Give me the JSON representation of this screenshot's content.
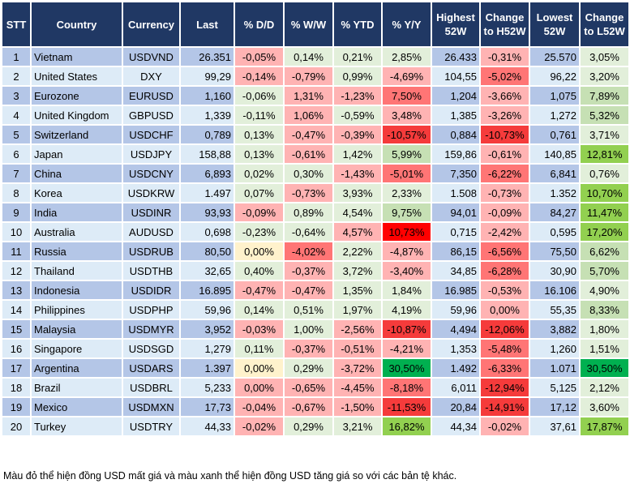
{
  "colors": {
    "g1": "#e2efda",
    "g2": "#c6e0b4",
    "g3": "#92d050",
    "g4": "#00b050",
    "r1": "#ffb3b3",
    "r2": "#ff7575",
    "r3": "#f53b3b",
    "r4": "#ff0000",
    "y": "#fff2cc"
  },
  "headers": [
    "STT",
    "Country",
    "Currency",
    "Last",
    "% D/D",
    "% W/W",
    "% YTD",
    "% Y/Y",
    "Highest 52W",
    "Change to H52W",
    "Lowest 52W",
    "Change to L52W"
  ],
  "rows": [
    {
      "stt": "1",
      "country": "Vietnam",
      "currency": "USDVND",
      "last": "26.351",
      "dd": [
        "-0,05%",
        "r1"
      ],
      "ww": [
        "0,14%",
        "g1"
      ],
      "ytd": [
        "0,21%",
        "g1"
      ],
      "yy": [
        "2,85%",
        "g1"
      ],
      "high": "26.433",
      "chh": [
        "-0,31%",
        "r1"
      ],
      "low": "25.570",
      "chl": [
        "3,05%",
        "g1"
      ]
    },
    {
      "stt": "2",
      "country": "United States",
      "currency": "DXY",
      "last": "99,29",
      "dd": [
        "-0,14%",
        "r1"
      ],
      "ww": [
        "-0,79%",
        "r1"
      ],
      "ytd": [
        "0,99%",
        "g1"
      ],
      "yy": [
        "-4,69%",
        "r1"
      ],
      "high": "104,55",
      "chh": [
        "-5,02%",
        "r2"
      ],
      "low": "96,22",
      "chl": [
        "3,20%",
        "g1"
      ]
    },
    {
      "stt": "3",
      "country": "Eurozone",
      "currency": "EURUSD",
      "last": "1,160",
      "dd": [
        "-0,06%",
        "g1"
      ],
      "ww": [
        "1,31%",
        "r1"
      ],
      "ytd": [
        "-1,23%",
        "r1"
      ],
      "yy": [
        "7,50%",
        "r2"
      ],
      "high": "1,204",
      "chh": [
        "-3,66%",
        "r1"
      ],
      "low": "1,075",
      "chl": [
        "7,89%",
        "g2"
      ]
    },
    {
      "stt": "4",
      "country": "United Kingdom",
      "currency": "GBPUSD",
      "last": "1,339",
      "dd": [
        "-0,11%",
        "g1"
      ],
      "ww": [
        "1,06%",
        "r1"
      ],
      "ytd": [
        "-0,59%",
        "g1"
      ],
      "yy": [
        "3,48%",
        "r1"
      ],
      "high": "1,385",
      "chh": [
        "-3,26%",
        "r1"
      ],
      "low": "1,272",
      "chl": [
        "5,32%",
        "g2"
      ]
    },
    {
      "stt": "5",
      "country": "Switzerland",
      "currency": "USDCHF",
      "last": "0,789",
      "dd": [
        "0,13%",
        "g1"
      ],
      "ww": [
        "-0,47%",
        "r1"
      ],
      "ytd": [
        "-0,39%",
        "r1"
      ],
      "yy": [
        "-10,57%",
        "r3"
      ],
      "high": "0,884",
      "chh": [
        "-10,73%",
        "r3"
      ],
      "low": "0,761",
      "chl": [
        "3,71%",
        "g1"
      ]
    },
    {
      "stt": "6",
      "country": "Japan",
      "currency": "USDJPY",
      "last": "158,88",
      "dd": [
        "0,13%",
        "g1"
      ],
      "ww": [
        "-0,61%",
        "r1"
      ],
      "ytd": [
        "1,42%",
        "g1"
      ],
      "yy": [
        "5,99%",
        "g2"
      ],
      "high": "159,86",
      "chh": [
        "-0,61%",
        "r1"
      ],
      "low": "140,85",
      "chl": [
        "12,81%",
        "g3"
      ]
    },
    {
      "stt": "7",
      "country": "China",
      "currency": "USDCNY",
      "last": "6,893",
      "dd": [
        "0,02%",
        "g1"
      ],
      "ww": [
        "0,30%",
        "g1"
      ],
      "ytd": [
        "-1,43%",
        "r1"
      ],
      "yy": [
        "-5,01%",
        "r2"
      ],
      "high": "7,350",
      "chh": [
        "-6,22%",
        "r2"
      ],
      "low": "6,841",
      "chl": [
        "0,76%",
        "g1"
      ]
    },
    {
      "stt": "8",
      "country": "Korea",
      "currency": "USDKRW",
      "last": "1.497",
      "dd": [
        "0,07%",
        "g1"
      ],
      "ww": [
        "-0,73%",
        "r1"
      ],
      "ytd": [
        "3,93%",
        "g1"
      ],
      "yy": [
        "2,33%",
        "g1"
      ],
      "high": "1.508",
      "chh": [
        "-0,73%",
        "r1"
      ],
      "low": "1.352",
      "chl": [
        "10,70%",
        "g3"
      ]
    },
    {
      "stt": "9",
      "country": "India",
      "currency": "USDINR",
      "last": "93,93",
      "dd": [
        "-0,09%",
        "r1"
      ],
      "ww": [
        "0,89%",
        "g1"
      ],
      "ytd": [
        "4,54%",
        "g1"
      ],
      "yy": [
        "9,75%",
        "g2"
      ],
      "high": "94,01",
      "chh": [
        "-0,09%",
        "r1"
      ],
      "low": "84,27",
      "chl": [
        "11,47%",
        "g3"
      ]
    },
    {
      "stt": "10",
      "country": "Australia",
      "currency": "AUDUSD",
      "last": "0,698",
      "dd": [
        "-0,23%",
        "g1"
      ],
      "ww": [
        "-0,64%",
        "g1"
      ],
      "ytd": [
        "4,57%",
        "r1"
      ],
      "yy": [
        "10,73%",
        "r4"
      ],
      "high": "0,715",
      "chh": [
        "-2,42%",
        "r1"
      ],
      "low": "0,595",
      "chl": [
        "17,20%",
        "g3"
      ]
    },
    {
      "stt": "11",
      "country": "Russia",
      "currency": "USDRUB",
      "last": "80,50",
      "dd": [
        "0,00%",
        "y"
      ],
      "ww": [
        "-4,02%",
        "r2"
      ],
      "ytd": [
        "2,22%",
        "g1"
      ],
      "yy": [
        "-4,87%",
        "r1"
      ],
      "high": "86,15",
      "chh": [
        "-6,56%",
        "r2"
      ],
      "low": "75,50",
      "chl": [
        "6,62%",
        "g2"
      ]
    },
    {
      "stt": "12",
      "country": "Thailand",
      "currency": "USDTHB",
      "last": "32,65",
      "dd": [
        "0,40%",
        "g1"
      ],
      "ww": [
        "-0,37%",
        "r1"
      ],
      "ytd": [
        "3,72%",
        "g1"
      ],
      "yy": [
        "-3,40%",
        "r1"
      ],
      "high": "34,85",
      "chh": [
        "-6,28%",
        "r2"
      ],
      "low": "30,90",
      "chl": [
        "5,70%",
        "g2"
      ]
    },
    {
      "stt": "13",
      "country": "Indonesia",
      "currency": "USDIDR",
      "last": "16.895",
      "dd": [
        "-0,47%",
        "r1"
      ],
      "ww": [
        "-0,47%",
        "r1"
      ],
      "ytd": [
        "1,35%",
        "g1"
      ],
      "yy": [
        "1,84%",
        "g1"
      ],
      "high": "16.985",
      "chh": [
        "-0,53%",
        "r1"
      ],
      "low": "16.106",
      "chl": [
        "4,90%",
        "g1"
      ]
    },
    {
      "stt": "14",
      "country": "Philippines",
      "currency": "USDPHP",
      "last": "59,96",
      "dd": [
        "0,14%",
        "g1"
      ],
      "ww": [
        "0,51%",
        "g1"
      ],
      "ytd": [
        "1,97%",
        "g1"
      ],
      "yy": [
        "4,19%",
        "g1"
      ],
      "high": "59,96",
      "chh": [
        "0,00%",
        "r1"
      ],
      "low": "55,35",
      "chl": [
        "8,33%",
        "g2"
      ]
    },
    {
      "stt": "15",
      "country": "Malaysia",
      "currency": "USDMYR",
      "last": "3,952",
      "dd": [
        "-0,03%",
        "r1"
      ],
      "ww": [
        "1,00%",
        "g1"
      ],
      "ytd": [
        "-2,56%",
        "r1"
      ],
      "yy": [
        "-10,87%",
        "r3"
      ],
      "high": "4,494",
      "chh": [
        "-12,06%",
        "r3"
      ],
      "low": "3,882",
      "chl": [
        "1,80%",
        "g1"
      ]
    },
    {
      "stt": "16",
      "country": "Singapore",
      "currency": "USDSGD",
      "last": "1,279",
      "dd": [
        "0,11%",
        "g1"
      ],
      "ww": [
        "-0,37%",
        "r1"
      ],
      "ytd": [
        "-0,51%",
        "r1"
      ],
      "yy": [
        "-4,21%",
        "r1"
      ],
      "high": "1,353",
      "chh": [
        "-5,48%",
        "r2"
      ],
      "low": "1,260",
      "chl": [
        "1,51%",
        "g1"
      ]
    },
    {
      "stt": "17",
      "country": "Argentina",
      "currency": "USDARS",
      "last": "1.397",
      "dd": [
        "0,00%",
        "y"
      ],
      "ww": [
        "0,29%",
        "g1"
      ],
      "ytd": [
        "-3,72%",
        "r1"
      ],
      "yy": [
        "30,50%",
        "g4"
      ],
      "high": "1.492",
      "chh": [
        "-6,33%",
        "r2"
      ],
      "low": "1.071",
      "chl": [
        "30,50%",
        "g4"
      ]
    },
    {
      "stt": "18",
      "country": "Brazil",
      "currency": "USDBRL",
      "last": "5,233",
      "dd": [
        "0,00%",
        "r1"
      ],
      "ww": [
        "-0,65%",
        "r1"
      ],
      "ytd": [
        "-4,45%",
        "r1"
      ],
      "yy": [
        "-8,18%",
        "r2"
      ],
      "high": "6,011",
      "chh": [
        "-12,94%",
        "r3"
      ],
      "low": "5,125",
      "chl": [
        "2,12%",
        "g1"
      ]
    },
    {
      "stt": "19",
      "country": "Mexico",
      "currency": "USDMXN",
      "last": "17,73",
      "dd": [
        "-0,04%",
        "r1"
      ],
      "ww": [
        "-0,67%",
        "r1"
      ],
      "ytd": [
        "-1,50%",
        "r1"
      ],
      "yy": [
        "-11,53%",
        "r3"
      ],
      "high": "20,84",
      "chh": [
        "-14,91%",
        "r3"
      ],
      "low": "17,12",
      "chl": [
        "3,60%",
        "g1"
      ]
    },
    {
      "stt": "20",
      "country": "Turkey",
      "currency": "USDTRY",
      "last": "44,33",
      "dd": [
        "-0,02%",
        "r1"
      ],
      "ww": [
        "0,29%",
        "g1"
      ],
      "ytd": [
        "3,21%",
        "g1"
      ],
      "yy": [
        "16,82%",
        "g3"
      ],
      "high": "44,34",
      "chh": [
        "-0,02%",
        "r1"
      ],
      "low": "37,61",
      "chl": [
        "17,87%",
        "g3"
      ]
    }
  ],
  "footer": "Màu đỏ thể hiện đồng USD mất giá và màu xanh thể hiện đồng USD tăng giá so với các bản tệ khác."
}
